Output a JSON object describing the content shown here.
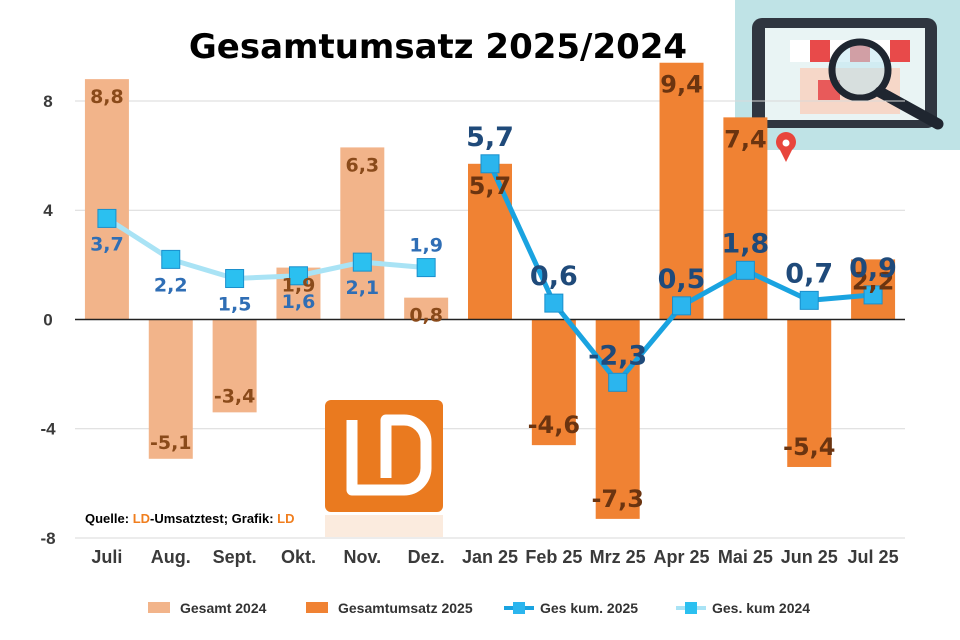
{
  "chart_data": {
    "type": "bar",
    "title": "Gesamtumsatz 2025/2024",
    "categories": [
      "Juli",
      "Aug.",
      "Sept.",
      "Okt.",
      "Nov.",
      "Dez.",
      "Jan 25",
      "Feb 25",
      "Mrz 25",
      "Apr 25",
      "Mai 25",
      "Jun 25",
      "Jul 25"
    ],
    "ylim": [
      -8,
      9.5
    ],
    "yticks": [
      8,
      4,
      0,
      -4,
      -8
    ],
    "ytick_labels": [
      "8",
      "4",
      "0",
      "-4",
      "-8"
    ],
    "grid": true,
    "legend_position": "bottom",
    "series": [
      {
        "name": "Gesamt 2024",
        "kind": "bar",
        "color": "#f2b48a",
        "values": [
          8.8,
          -5.1,
          -3.4,
          1.9,
          6.3,
          0.8,
          null,
          null,
          null,
          null,
          null,
          null,
          null
        ],
        "labels": [
          "8,8",
          "-5,1",
          "-3,4",
          "1,9",
          "6,3",
          "0,8",
          "",
          "",
          "",
          "",
          "",
          "",
          ""
        ]
      },
      {
        "name": "Gesamtumsatz 2025",
        "kind": "bar",
        "color": "#f08233",
        "values": [
          null,
          null,
          null,
          null,
          null,
          null,
          5.7,
          -4.6,
          -7.3,
          9.4,
          7.4,
          -5.4,
          2.2
        ],
        "labels": [
          "",
          "",
          "",
          "",
          "",
          "",
          "5,7",
          "-4,6",
          "-7,3",
          "9,4",
          "7,4",
          "-5,4",
          "2,2"
        ]
      },
      {
        "name": "Ges kum. 2025",
        "kind": "line",
        "color": "#1aa3e0",
        "marker": "#2bb5ee",
        "values": [
          null,
          null,
          null,
          null,
          null,
          null,
          5.7,
          0.6,
          -2.3,
          0.5,
          1.8,
          0.7,
          0.9
        ],
        "labels": [
          "",
          "",
          "",
          "",
          "",
          "",
          "5,7",
          "0,6",
          "-2,3",
          "0,5",
          "1,8",
          "0,7",
          "0,9"
        ]
      },
      {
        "name": "Ges. kum 2024",
        "kind": "line",
        "color": "#a9e3f5",
        "marker": "#2bc0f0",
        "values": [
          3.7,
          2.2,
          1.5,
          1.6,
          2.1,
          1.9,
          null,
          null,
          null,
          null,
          null,
          null,
          null
        ],
        "labels": [
          "3,7",
          "2,2",
          "1,5",
          "1,6",
          "2,1",
          "1,9",
          "",
          "",
          "",
          "",
          "",
          "",
          ""
        ]
      }
    ],
    "source": {
      "prefix": "Quelle: ",
      "ld1": "LD",
      "middle": "-Umsatztest; Grafik: ",
      "ld2": "LD"
    },
    "logo_text": "LD"
  }
}
